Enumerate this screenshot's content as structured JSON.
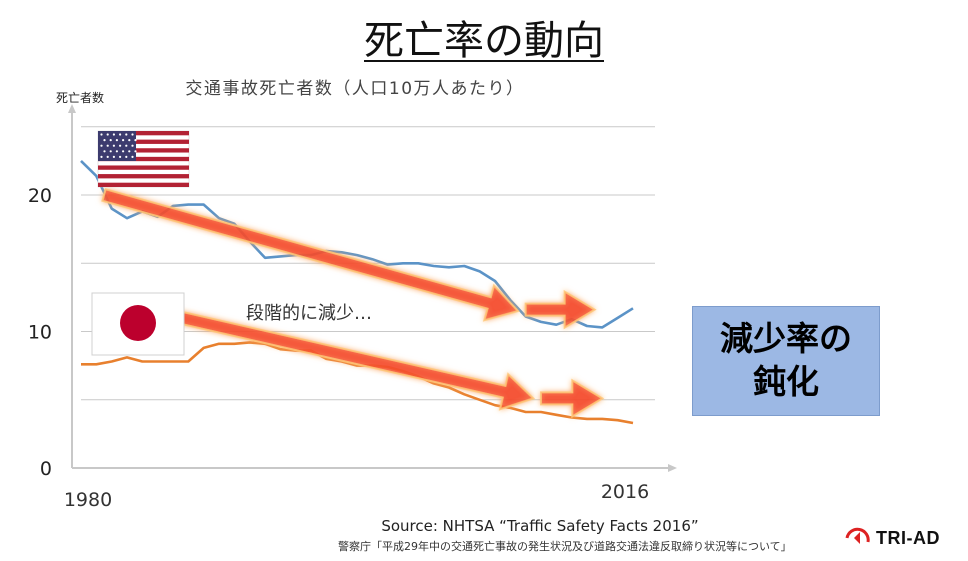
{
  "slide": {
    "title": "死亡率の動向",
    "callout": "減少率の\n鈍化",
    "source_line1": "Source: NHTSA “Traffic Safety Facts 2016”",
    "source_line2": "警察庁「平成29年中の交通死亡事故の発生状況及び道路交通法違反取締り状況等について」",
    "logo_text": "TRI-AD"
  },
  "chart_data": {
    "type": "line",
    "title": "交通事故死亡者数（人口10万人あたり）",
    "ylabel": "死亡者数",
    "ylim": [
      0,
      25
    ],
    "xlim": [
      1980,
      2016
    ],
    "yticks": [
      0,
      10,
      20
    ],
    "xtick_labels": [
      "1980",
      "2016"
    ],
    "grid": true,
    "annotation": "段階的に減少…",
    "x": [
      1980,
      1981,
      1982,
      1983,
      1984,
      1985,
      1986,
      1987,
      1988,
      1989,
      1990,
      1991,
      1992,
      1993,
      1994,
      1995,
      1996,
      1997,
      1998,
      1999,
      2000,
      2001,
      2002,
      2003,
      2004,
      2005,
      2006,
      2007,
      2008,
      2009,
      2010,
      2011,
      2012,
      2013,
      2014,
      2015,
      2016
    ],
    "series": [
      {
        "label_icon": "us-flag-icon",
        "color": "#5b93c7",
        "values": [
          22.5,
          21.4,
          19.0,
          18.3,
          18.8,
          18.4,
          19.2,
          19.3,
          19.3,
          18.3,
          17.9,
          16.6,
          15.4,
          15.5,
          15.6,
          15.6,
          15.9,
          15.8,
          15.6,
          15.3,
          14.9,
          15.0,
          15.0,
          14.8,
          14.7,
          14.8,
          14.4,
          13.7,
          12.3,
          11.1,
          10.7,
          10.5,
          10.9,
          10.4,
          10.3,
          11.0,
          11.7
        ]
      },
      {
        "label_icon": "jp-flag-icon",
        "color": "#e8802e",
        "values": [
          7.6,
          7.6,
          7.8,
          8.1,
          7.8,
          7.8,
          7.8,
          7.8,
          8.8,
          9.1,
          9.1,
          9.2,
          9.1,
          8.7,
          8.6,
          8.6,
          8.0,
          7.8,
          7.5,
          7.5,
          7.4,
          7.1,
          6.7,
          6.2,
          5.9,
          5.4,
          5.0,
          4.6,
          4.4,
          4.1,
          4.1,
          3.9,
          3.7,
          3.6,
          3.6,
          3.5,
          3.3
        ]
      }
    ],
    "trend_arrows": [
      {
        "name": "us-decline-arrow",
        "from": [
          1981.5,
          20.0
        ],
        "to": [
          2008.5,
          11.5
        ]
      },
      {
        "name": "us-plateau-arrow",
        "from": [
          2009.0,
          11.6
        ],
        "to": [
          2013.5,
          11.6
        ]
      },
      {
        "name": "jp-decline-arrow",
        "from": [
          1985.0,
          11.4
        ],
        "to": [
          2009.5,
          5.1
        ]
      },
      {
        "name": "jp-plateau-arrow",
        "from": [
          2010.0,
          5.1
        ],
        "to": [
          2014.0,
          5.1
        ]
      }
    ]
  }
}
